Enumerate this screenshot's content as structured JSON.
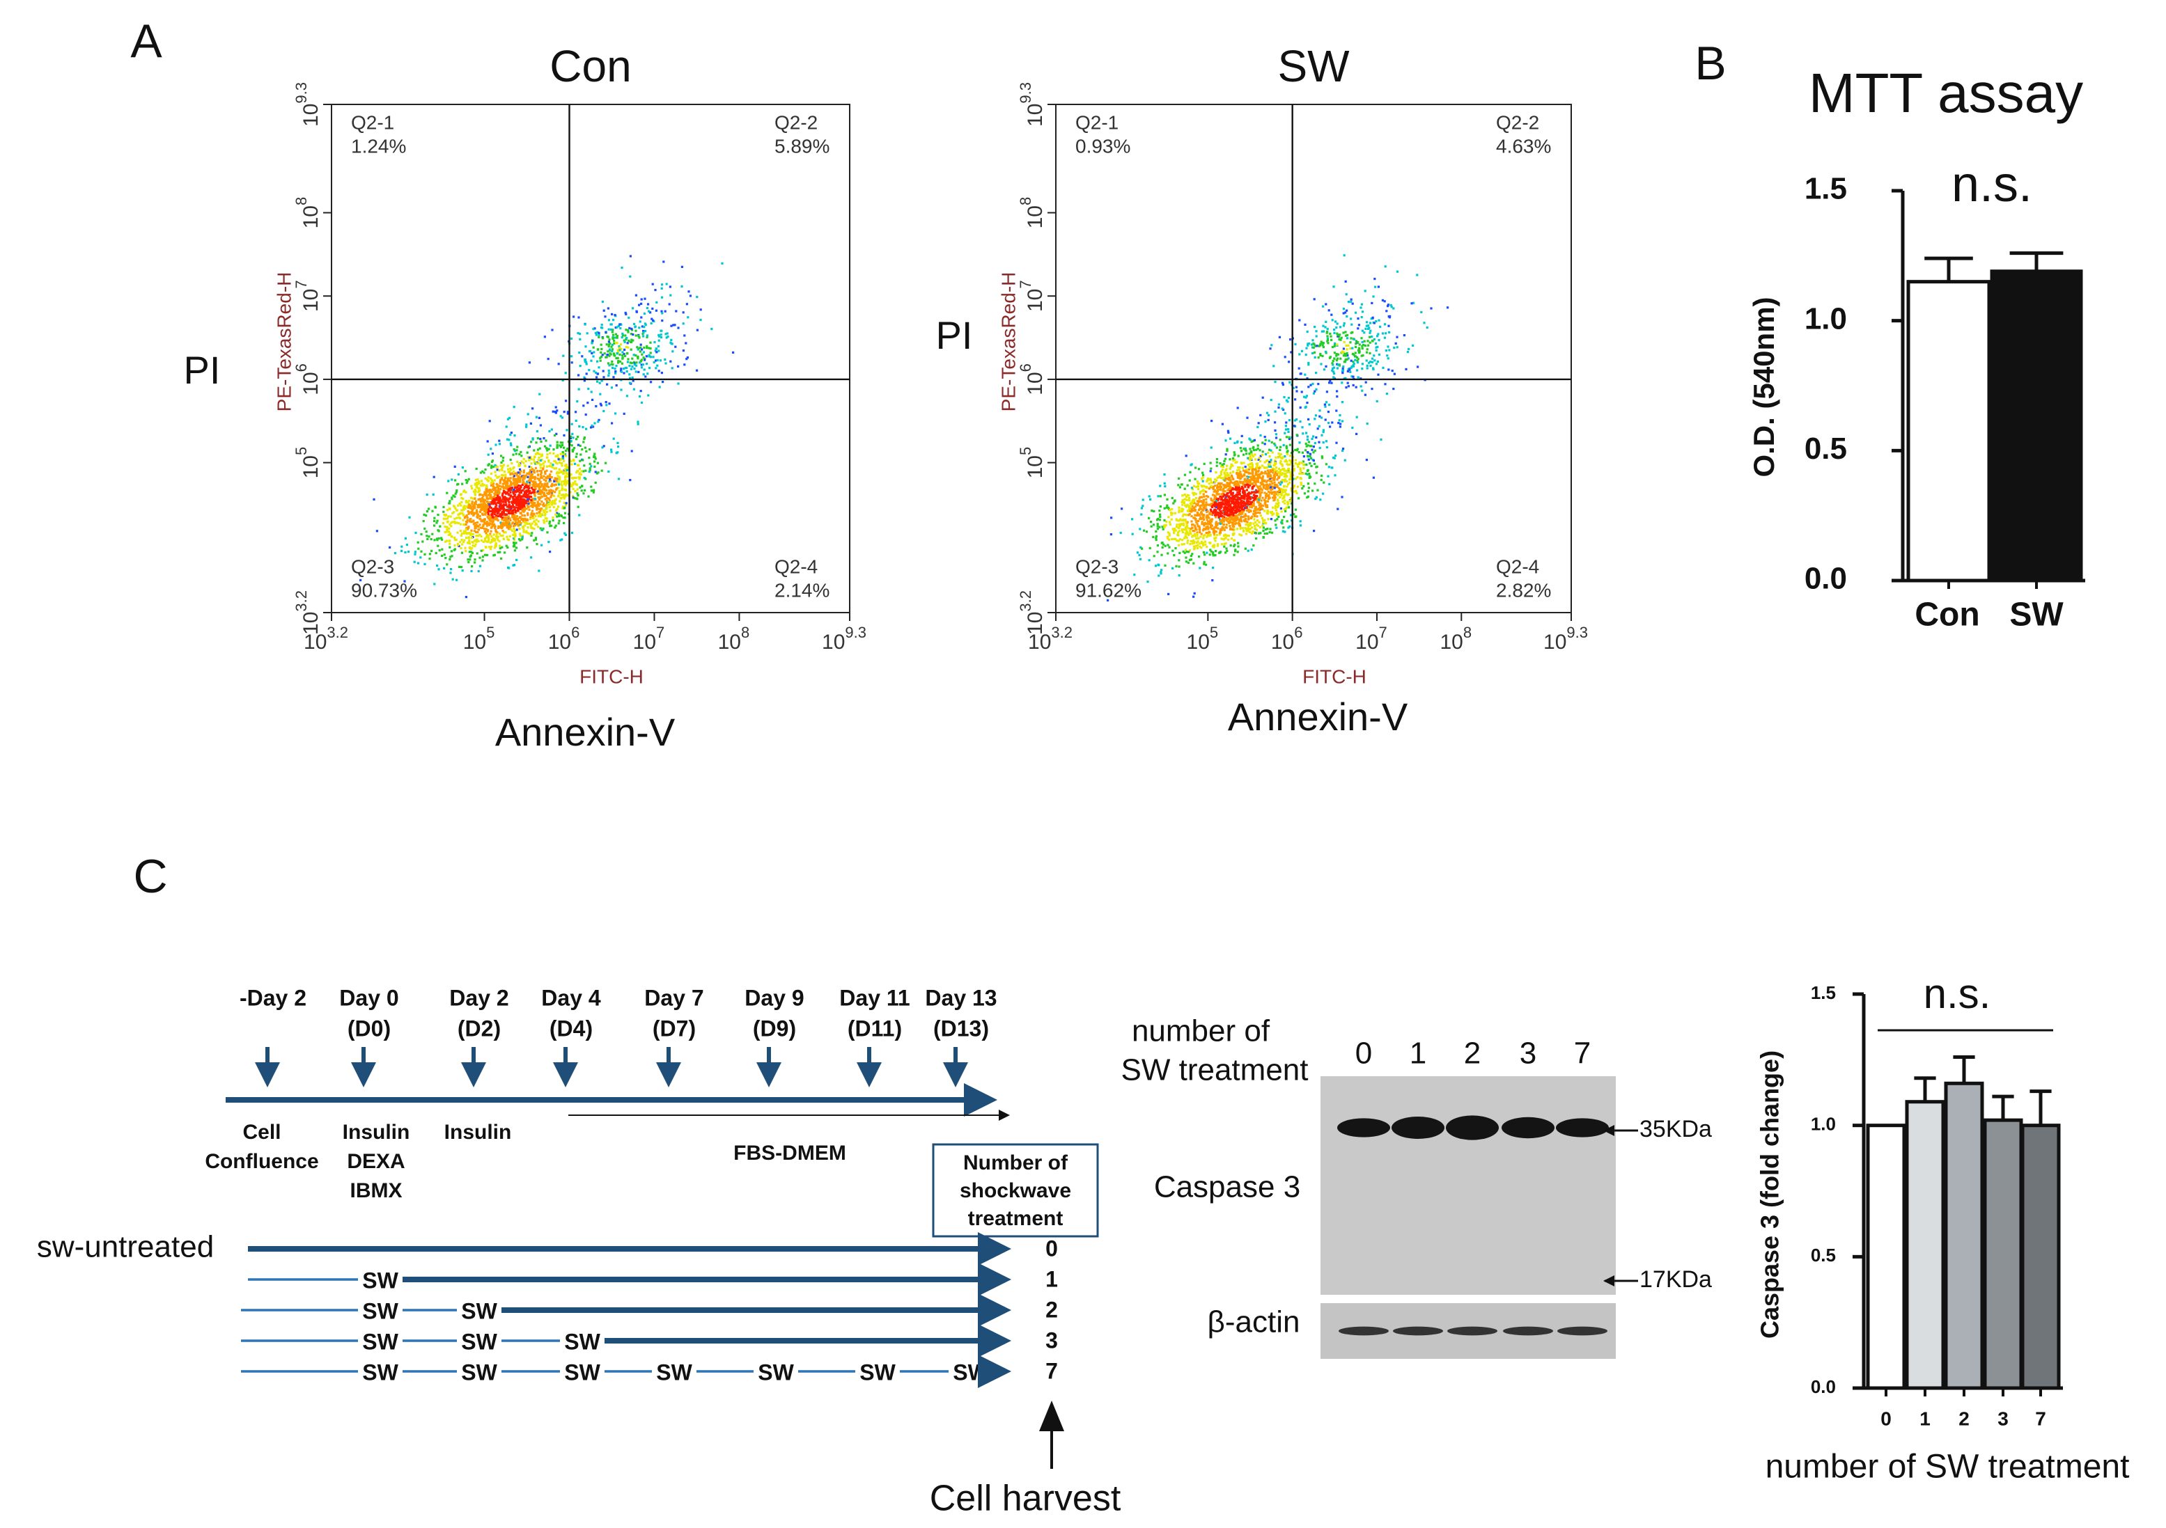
{
  "panel_labels": [
    "A",
    "B",
    "C"
  ],
  "flow_plots": [
    {
      "title": "Con",
      "side_label": "PI",
      "y_axis_label": "PE-TexasRed-H",
      "x_axis_label": "FITC-H",
      "caption": "Annexin-V",
      "tick_base": "10",
      "xlim": [
        3.2,
        9.3
      ],
      "ylim": [
        3.2,
        9.3
      ],
      "xticks": [
        3.2,
        5,
        6,
        7,
        8,
        9.3
      ],
      "yticks": [
        3.2,
        5,
        6,
        7,
        8,
        9.3
      ],
      "gate_x": 6,
      "gate_y": 6,
      "quadrants": [
        {
          "name": "Q2-1",
          "value": 1.24,
          "value_label": "1.24%"
        },
        {
          "name": "Q2-2",
          "value": 5.89,
          "value_label": "5.89%"
        },
        {
          "name": "Q2-3",
          "value": 90.73,
          "value_label": "90.73%"
        },
        {
          "name": "Q2-4",
          "value": 2.14,
          "value_label": "2.14%"
        }
      ]
    },
    {
      "title": "SW",
      "side_label": "PI",
      "y_axis_label": "PE-TexasRed-H",
      "x_axis_label": "FITC-H",
      "caption": "Annexin-V",
      "tick_base": "10",
      "xlim": [
        3.2,
        9.3
      ],
      "ylim": [
        3.2,
        9.3
      ],
      "xticks": [
        3.2,
        5,
        6,
        7,
        8,
        9.3
      ],
      "yticks": [
        3.2,
        5,
        6,
        7,
        8,
        9.3
      ],
      "gate_x": 6,
      "gate_y": 6,
      "quadrants": [
        {
          "name": "Q2-1",
          "value": 0.93,
          "value_label": "0.93%"
        },
        {
          "name": "Q2-2",
          "value": 4.63,
          "value_label": "4.63%"
        },
        {
          "name": "Q2-3",
          "value": 91.62,
          "value_label": "91.62%"
        },
        {
          "name": "Q2-4",
          "value": 2.82,
          "value_label": "2.82%"
        }
      ]
    }
  ],
  "chart_data": [
    {
      "type": "bar",
      "title": "MTT assay",
      "annotation": "n.s.",
      "y_axis_label": "O.D. (540nm)",
      "categories": [
        "Con",
        "SW"
      ],
      "values": [
        1.15,
        1.19
      ],
      "errors": [
        0.09,
        0.07
      ],
      "colors": [
        "#ffffff",
        "#111111"
      ],
      "ylim": [
        0,
        1.5
      ],
      "yticks": [
        {
          "value": 0,
          "label": "0.0"
        },
        {
          "value": 0.5,
          "label": "0.5"
        },
        {
          "value": 1,
          "label": "1.0"
        },
        {
          "value": 1.5,
          "label": "1.5"
        }
      ]
    },
    {
      "type": "bar",
      "annotation": "n.s.",
      "y_axis_label": "Caspase 3 (fold change)",
      "x_axis_label": "number of SW treatment",
      "categories": [
        "0",
        "1",
        "2",
        "3",
        "7"
      ],
      "values": [
        1.0,
        1.09,
        1.16,
        1.02,
        1.0
      ],
      "errors": [
        0,
        0.09,
        0.1,
        0.09,
        0.13
      ],
      "colors": [
        "#ffffff",
        "#d9dde0",
        "#aab0b5",
        "#8c9196",
        "#70757a"
      ],
      "ylim": [
        0,
        1.5
      ],
      "yticks": [
        {
          "value": 0,
          "label": "0.0"
        },
        {
          "value": 0.5,
          "label": "0.5"
        },
        {
          "value": 1,
          "label": "1.0"
        },
        {
          "value": 1.5,
          "label": "1.5"
        }
      ]
    }
  ],
  "timeline": {
    "days": [
      {
        "day": "-Day 2"
      },
      {
        "day": "Day 0",
        "code": "(D0)"
      },
      {
        "day": "Day 2",
        "code": "(D2)"
      },
      {
        "day": "Day 4",
        "code": "(D4)"
      },
      {
        "day": "Day 7",
        "code": "(D7)"
      },
      {
        "day": "Day 9",
        "code": "(D9)"
      },
      {
        "day": "Day 11",
        "code": "(D11)"
      },
      {
        "day": "Day 13",
        "code": "(D13)"
      }
    ],
    "conditions": [
      [
        "Cell",
        "Confluence"
      ],
      [
        "Insulin",
        "DEXA",
        "IBMX"
      ],
      [
        "Insulin"
      ]
    ],
    "medium": "FBS-DMEM",
    "box_label": [
      "Number of",
      "shockwave",
      "treatment"
    ],
    "untreated_label": "sw-untreated",
    "rows": [
      {
        "count": "0",
        "marks": []
      },
      {
        "count": "1",
        "marks": [
          "SW"
        ]
      },
      {
        "count": "2",
        "marks": [
          "SW",
          "SW"
        ]
      },
      {
        "count": "3",
        "marks": [
          "SW",
          "SW",
          "SW"
        ]
      },
      {
        "count": "7",
        "marks": [
          "SW",
          "SW",
          "SW",
          "SW",
          "SW",
          "SW",
          "SW"
        ]
      }
    ],
    "harvest": "Cell harvest"
  },
  "western": {
    "header": [
      "number of",
      "SW treatment"
    ],
    "lanes": [
      "0",
      "1",
      "2",
      "3",
      "7"
    ],
    "targets": [
      "Caspase 3",
      "β-actin"
    ],
    "markers": [
      "35KDa",
      "17KDa"
    ]
  }
}
